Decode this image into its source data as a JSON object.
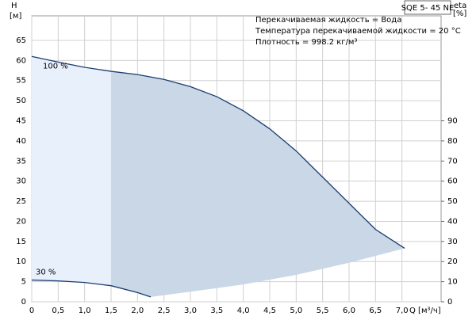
{
  "chart_data": {
    "type": "line",
    "title": "SQE 5- 45 NE",
    "annotations": [
      "Перекачиваемая жидкость = Вода",
      "Температура перекачиваемой жидкости = 20 °C",
      "Плотность = 998.2 кг/м³"
    ],
    "xlabel": "Q [м³/ч]",
    "ylabel": [
      "H",
      "[м]"
    ],
    "y2label": [
      "eta",
      "[%]"
    ],
    "xlim": [
      0,
      7.74
    ],
    "ylim": [
      0,
      71.1
    ],
    "y2lim": [
      0,
      142.2
    ],
    "xticks": [
      0,
      {
        "value": 0.5,
        "label": "0,5"
      },
      {
        "value": 1,
        "label": "1,0"
      },
      {
        "value": 1.5,
        "label": "1,5"
      },
      {
        "value": 2,
        "label": "2,0"
      },
      {
        "value": 2.5,
        "label": "2,5"
      },
      {
        "value": 3,
        "label": "3,0"
      },
      {
        "value": 3.5,
        "label": "3,5"
      },
      {
        "value": 4,
        "label": "4,0"
      },
      {
        "value": 4.5,
        "label": "4,5"
      },
      {
        "value": 5,
        "label": "5,0"
      },
      {
        "value": 5.5,
        "label": "5,5"
      },
      {
        "value": 6,
        "label": "6,0"
      },
      {
        "value": 6.5,
        "label": "6,5"
      },
      {
        "value": 7,
        "label": "7,0"
      }
    ],
    "yticks": [
      0,
      5,
      10,
      15,
      20,
      25,
      30,
      35,
      40,
      45,
      50,
      55,
      60,
      65
    ],
    "y2ticks": [
      0,
      10,
      20,
      30,
      40,
      50,
      60,
      70,
      80,
      90
    ],
    "grid": true,
    "series": [
      {
        "name": "100 %",
        "color": "#1b3c6e",
        "x": [
          0,
          0.5,
          1,
          1.5,
          2,
          2.5,
          3,
          3.5,
          4,
          4.5,
          5,
          5.5,
          6,
          6.5,
          7.05
        ],
        "values": [
          61,
          59.6,
          58.3,
          57.3,
          56.5,
          55.3,
          53.5,
          51,
          47.5,
          43,
          37.5,
          31,
          24.5,
          18,
          13.3
        ]
      },
      {
        "name": "30 %",
        "color": "#1b3c6e",
        "x": [
          0,
          0.5,
          1,
          1.5,
          2,
          2.25
        ],
        "values": [
          5.4,
          5.2,
          4.8,
          4,
          2.3,
          1.2
        ]
      },
      {
        "color": "#ffffff",
        "x": [
          2.25,
          3,
          4,
          5,
          6,
          7.05
        ],
        "values": [
          1.2,
          2.5,
          4.3,
          6.7,
          9.7,
          13.3
        ]
      }
    ]
  }
}
